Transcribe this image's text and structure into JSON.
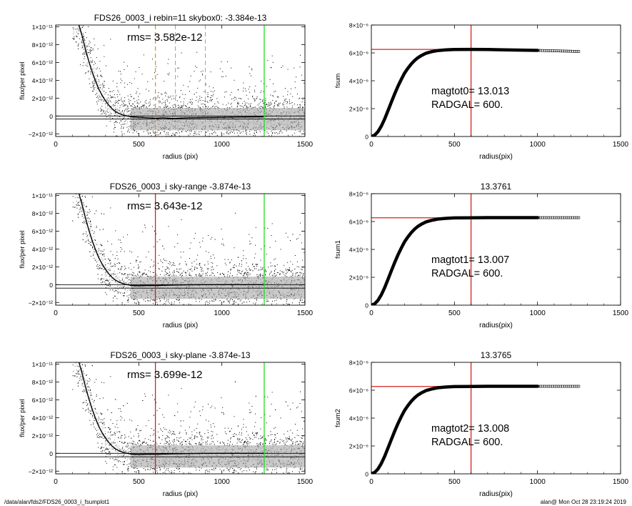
{
  "footer": {
    "left": "/data/alan/fds2/FDS26_0003_i_fsumplot1",
    "right": "alan@  Mon Oct 28 23:19:24 2019"
  },
  "colors": {
    "scatter_dark": "#000000",
    "scatter_light": "#9e9e9e",
    "profile": "#000000",
    "red_line": "#d62020",
    "green_line": "#22dd22",
    "orange_line": "#f0901c",
    "dash_gray": "#8c8c8c"
  },
  "chart_data": [
    {
      "type": "scatter",
      "title": "FDS26_0003_i rebin=11    skybox0: -3.384e-13",
      "annotation": "rms= 3.582e-12",
      "xlabel": "radius (pix)",
      "ylabel": "flux/per pixel",
      "xlim": [
        0,
        1500
      ],
      "ylim": [
        -2.3e-12,
        1.02e-11
      ],
      "xticks": [
        0,
        500,
        1000,
        1500
      ],
      "xtick_labels": [
        "0",
        "500",
        "1000",
        "1500"
      ],
      "yticks": [
        -2e-12,
        0,
        2e-12,
        4e-12,
        6e-12,
        8e-12,
        1e-11
      ],
      "ytick_labels": [
        "−2×10⁻¹²",
        "0",
        "2×10⁻¹²",
        "4×10⁻¹²",
        "6×10⁻¹²",
        "8×10⁻¹²",
        "1×10⁻¹¹"
      ],
      "hlines": [
        0,
        -3.4e-13
      ],
      "vlines": [
        {
          "x": 600,
          "style": "dashed",
          "color": "orange"
        },
        {
          "x": 720,
          "style": "dashed",
          "color": "gray"
        },
        {
          "x": 900,
          "style": "dashed",
          "color": "gray"
        },
        {
          "x": 1255,
          "style": "solid",
          "color": "green"
        }
      ],
      "profile": [
        [
          140,
          1.02e-11
        ],
        [
          160,
          8.9e-12
        ],
        [
          180,
          7.4e-12
        ],
        [
          200,
          6.1e-12
        ],
        [
          220,
          4.9e-12
        ],
        [
          240,
          3.9e-12
        ],
        [
          260,
          3e-12
        ],
        [
          280,
          2.3e-12
        ],
        [
          300,
          1.7e-12
        ],
        [
          320,
          1.2e-12
        ],
        [
          340,
          8e-13
        ],
        [
          360,
          5e-13
        ],
        [
          380,
          3e-13
        ],
        [
          400,
          1.5e-13
        ],
        [
          430,
          0
        ],
        [
          460,
          -1e-13
        ],
        [
          500,
          -1.5e-13
        ],
        [
          550,
          -2e-13
        ],
        [
          600,
          -2.5e-13
        ],
        [
          650,
          -2e-13
        ],
        [
          700,
          -2.8e-13
        ],
        [
          800,
          -2e-13
        ],
        [
          900,
          -1.8e-13
        ],
        [
          1000,
          -1.5e-13
        ],
        [
          1100,
          -1.2e-13
        ],
        [
          1200,
          -1e-13
        ],
        [
          1250,
          -1e-13
        ]
      ]
    },
    {
      "type": "line",
      "title": "",
      "xlabel": "radius(pix)",
      "ylabel": "fsum",
      "xlim": [
        0,
        1500
      ],
      "ylim": [
        0,
        8e-06
      ],
      "xticks": [
        0,
        500,
        1000,
        1500
      ],
      "xtick_labels": [
        "0",
        "500",
        "1000",
        "1500"
      ],
      "yticks": [
        0,
        2e-06,
        4e-06,
        6e-06,
        8e-06
      ],
      "ytick_labels": [
        "0",
        "2×10⁻⁶",
        "4×10⁻⁶",
        "6×10⁻⁶",
        "8×10⁻⁶"
      ],
      "annotation_lines": [
        "magtot0=  13.013",
        "RADGAL=    600."
      ],
      "hline": 6.25e-06,
      "vline": 600,
      "tail_end": 1255,
      "curve": [
        [
          0,
          0
        ],
        [
          20,
          1e-07
        ],
        [
          40,
          3.5e-07
        ],
        [
          60,
          7.5e-07
        ],
        [
          80,
          1.25e-06
        ],
        [
          100,
          1.85e-06
        ],
        [
          120,
          2.45e-06
        ],
        [
          140,
          3.05e-06
        ],
        [
          160,
          3.6e-06
        ],
        [
          180,
          4.1e-06
        ],
        [
          200,
          4.55e-06
        ],
        [
          220,
          4.9e-06
        ],
        [
          240,
          5.2e-06
        ],
        [
          260,
          5.45e-06
        ],
        [
          280,
          5.65e-06
        ],
        [
          300,
          5.8e-06
        ],
        [
          330,
          5.98e-06
        ],
        [
          360,
          6.08e-06
        ],
        [
          400,
          6.17e-06
        ],
        [
          450,
          6.22e-06
        ],
        [
          500,
          6.24e-06
        ],
        [
          600,
          6.25e-06
        ],
        [
          700,
          6.24e-06
        ],
        [
          800,
          6.22e-06
        ],
        [
          900,
          6.2e-06
        ],
        [
          1000,
          6.18e-06
        ],
        [
          1100,
          6.15e-06
        ],
        [
          1255,
          6.1e-06
        ]
      ]
    },
    {
      "type": "scatter",
      "title": "FDS26_0003_i sky-range -3.874e-13",
      "annotation": "rms= 3.643e-12",
      "xlabel": "radius (pix)",
      "ylabel": "flux/per pixel",
      "xlim": [
        0,
        1500
      ],
      "ylim": [
        -2.3e-12,
        1.02e-11
      ],
      "xticks": [
        0,
        500,
        1000,
        1500
      ],
      "xtick_labels": [
        "0",
        "500",
        "1000",
        "1500"
      ],
      "yticks": [
        -2e-12,
        0,
        2e-12,
        4e-12,
        6e-12,
        8e-12,
        1e-11
      ],
      "ytick_labels": [
        "−2×10⁻¹²",
        "0",
        "2×10⁻¹²",
        "4×10⁻¹²",
        "6×10⁻¹²",
        "8×10⁻¹²",
        "1×10⁻¹¹"
      ],
      "hlines": [
        0,
        -3.9e-13
      ],
      "vlines": [
        {
          "x": 600,
          "style": "solid",
          "color": "red"
        },
        {
          "x": 1255,
          "style": "solid",
          "color": "green"
        }
      ],
      "profile": [
        [
          140,
          1.02e-11
        ],
        [
          160,
          8.9e-12
        ],
        [
          180,
          7.4e-12
        ],
        [
          200,
          6.1e-12
        ],
        [
          220,
          4.9e-12
        ],
        [
          240,
          3.9e-12
        ],
        [
          260,
          3e-12
        ],
        [
          280,
          2.3e-12
        ],
        [
          300,
          1.7e-12
        ],
        [
          320,
          1.2e-12
        ],
        [
          340,
          8e-13
        ],
        [
          360,
          5e-13
        ],
        [
          380,
          3e-13
        ],
        [
          400,
          1.5e-13
        ],
        [
          430,
          0
        ],
        [
          460,
          -1e-13
        ],
        [
          500,
          -1.2e-13
        ],
        [
          550,
          -1e-13
        ],
        [
          600,
          -1e-13
        ],
        [
          700,
          -5e-14
        ],
        [
          800,
          -2e-14
        ],
        [
          900,
          0
        ],
        [
          1000,
          0
        ],
        [
          1100,
          0
        ],
        [
          1250,
          0
        ]
      ]
    },
    {
      "type": "line",
      "title": "13.3761",
      "xlabel": "radius(pix)",
      "ylabel": "fsum1",
      "xlim": [
        0,
        1500
      ],
      "ylim": [
        0,
        8e-06
      ],
      "xticks": [
        0,
        500,
        1000,
        1500
      ],
      "xtick_labels": [
        "0",
        "500",
        "1000",
        "1500"
      ],
      "yticks": [
        0,
        2e-06,
        4e-06,
        6e-06,
        8e-06
      ],
      "ytick_labels": [
        "0",
        "2×10⁻⁶",
        "4×10⁻⁶",
        "6×10⁻⁶",
        "8×10⁻⁶"
      ],
      "annotation_lines": [
        "magtot1=  13.007",
        "RADGAL=    600."
      ],
      "hline": 6.27e-06,
      "vline": 600,
      "tail_end": 1255,
      "curve": [
        [
          0,
          0
        ],
        [
          20,
          1e-07
        ],
        [
          40,
          3.5e-07
        ],
        [
          60,
          7.5e-07
        ],
        [
          80,
          1.25e-06
        ],
        [
          100,
          1.85e-06
        ],
        [
          120,
          2.45e-06
        ],
        [
          140,
          3.05e-06
        ],
        [
          160,
          3.6e-06
        ],
        [
          180,
          4.1e-06
        ],
        [
          200,
          4.55e-06
        ],
        [
          220,
          4.9e-06
        ],
        [
          240,
          5.2e-06
        ],
        [
          260,
          5.45e-06
        ],
        [
          280,
          5.65e-06
        ],
        [
          300,
          5.8e-06
        ],
        [
          330,
          5.98e-06
        ],
        [
          360,
          6.08e-06
        ],
        [
          400,
          6.18e-06
        ],
        [
          450,
          6.23e-06
        ],
        [
          500,
          6.26e-06
        ],
        [
          600,
          6.27e-06
        ],
        [
          700,
          6.28e-06
        ],
        [
          800,
          6.28e-06
        ],
        [
          900,
          6.28e-06
        ],
        [
          1000,
          6.28e-06
        ],
        [
          1100,
          6.28e-06
        ],
        [
          1255,
          6.28e-06
        ]
      ]
    },
    {
      "type": "scatter",
      "title": "FDS26_0003_i sky-plane -3.874e-13",
      "annotation": "rms= 3.699e-12",
      "xlabel": "radius (pix)",
      "ylabel": "flux/per pixel",
      "xlim": [
        0,
        1500
      ],
      "ylim": [
        -2.3e-12,
        1.02e-11
      ],
      "xticks": [
        0,
        500,
        1000,
        1500
      ],
      "xtick_labels": [
        "0",
        "500",
        "1000",
        "1500"
      ],
      "yticks": [
        -2e-12,
        0,
        2e-12,
        4e-12,
        6e-12,
        8e-12,
        1e-11
      ],
      "ytick_labels": [
        "−2×10⁻¹²",
        "0",
        "2×10⁻¹²",
        "4×10⁻¹²",
        "6×10⁻¹²",
        "8×10⁻¹²",
        "1×10⁻¹¹"
      ],
      "hlines": [
        0,
        -3.9e-13
      ],
      "vlines": [
        {
          "x": 600,
          "style": "solid",
          "color": "red"
        },
        {
          "x": 1255,
          "style": "solid",
          "color": "green"
        }
      ],
      "profile": [
        [
          140,
          1.02e-11
        ],
        [
          160,
          8.9e-12
        ],
        [
          180,
          7.4e-12
        ],
        [
          200,
          6.1e-12
        ],
        [
          220,
          4.9e-12
        ],
        [
          240,
          3.9e-12
        ],
        [
          260,
          3e-12
        ],
        [
          280,
          2.3e-12
        ],
        [
          300,
          1.7e-12
        ],
        [
          320,
          1.2e-12
        ],
        [
          340,
          8e-13
        ],
        [
          360,
          5e-13
        ],
        [
          380,
          3e-13
        ],
        [
          400,
          1.5e-13
        ],
        [
          430,
          0
        ],
        [
          460,
          -1e-13
        ],
        [
          500,
          -1.2e-13
        ],
        [
          550,
          -1e-13
        ],
        [
          600,
          -1e-13
        ],
        [
          700,
          -6e-14
        ],
        [
          800,
          -3e-14
        ],
        [
          900,
          0
        ],
        [
          1000,
          0
        ],
        [
          1100,
          0
        ],
        [
          1250,
          0
        ]
      ]
    },
    {
      "type": "line",
      "title": "13.3765",
      "xlabel": "radius(pix)",
      "ylabel": "fsum2",
      "xlim": [
        0,
        1500
      ],
      "ylim": [
        0,
        8e-06
      ],
      "xticks": [
        0,
        500,
        1000,
        1500
      ],
      "xtick_labels": [
        "0",
        "500",
        "1000",
        "1500"
      ],
      "yticks": [
        0,
        2e-06,
        4e-06,
        6e-06,
        8e-06
      ],
      "ytick_labels": [
        "0",
        "2×10⁻⁶",
        "4×10⁻⁶",
        "6×10⁻⁶",
        "8×10⁻⁶"
      ],
      "annotation_lines": [
        "magtot2=  13.008",
        "RADGAL=    600."
      ],
      "hline": 6.27e-06,
      "vline": 600,
      "tail_end": 1255,
      "curve": [
        [
          0,
          0
        ],
        [
          20,
          1e-07
        ],
        [
          40,
          3.5e-07
        ],
        [
          60,
          7.5e-07
        ],
        [
          80,
          1.25e-06
        ],
        [
          100,
          1.85e-06
        ],
        [
          120,
          2.45e-06
        ],
        [
          140,
          3.05e-06
        ],
        [
          160,
          3.6e-06
        ],
        [
          180,
          4.1e-06
        ],
        [
          200,
          4.55e-06
        ],
        [
          220,
          4.9e-06
        ],
        [
          240,
          5.2e-06
        ],
        [
          260,
          5.45e-06
        ],
        [
          280,
          5.65e-06
        ],
        [
          300,
          5.8e-06
        ],
        [
          330,
          5.98e-06
        ],
        [
          360,
          6.08e-06
        ],
        [
          400,
          6.18e-06
        ],
        [
          450,
          6.23e-06
        ],
        [
          500,
          6.26e-06
        ],
        [
          600,
          6.27e-06
        ],
        [
          700,
          6.28e-06
        ],
        [
          800,
          6.28e-06
        ],
        [
          900,
          6.28e-06
        ],
        [
          1000,
          6.28e-06
        ],
        [
          1100,
          6.28e-06
        ],
        [
          1255,
          6.28e-06
        ]
      ]
    }
  ]
}
